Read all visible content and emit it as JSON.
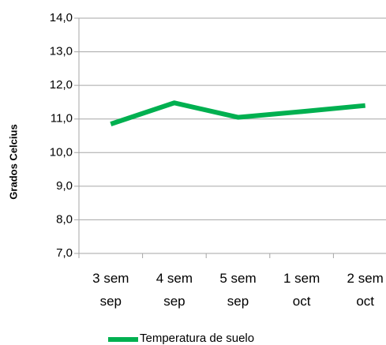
{
  "chart_data": {
    "type": "line",
    "y_label": "Grados Celcius",
    "categories": [
      "3 sem sep",
      "4 sem sep",
      "5 sem sep",
      "1 sem oct",
      "2 sem oct"
    ],
    "series": [
      {
        "name": "Temperatura de suelo",
        "color": "#00b050",
        "values": [
          10.85,
          11.48,
          11.05,
          11.22,
          11.4
        ]
      }
    ],
    "ylim": [
      7,
      14
    ],
    "yticks": [
      {
        "value": 7,
        "label": "7,0"
      },
      {
        "value": 8,
        "label": "8,0"
      },
      {
        "value": 9,
        "label": "9,0"
      },
      {
        "value": 10,
        "label": "10,0"
      },
      {
        "value": 11,
        "label": "11,0"
      },
      {
        "value": 12,
        "label": "12,0"
      },
      {
        "value": 13,
        "label": "13,0"
      },
      {
        "value": 14,
        "label": "14,0"
      }
    ],
    "grid": true
  }
}
